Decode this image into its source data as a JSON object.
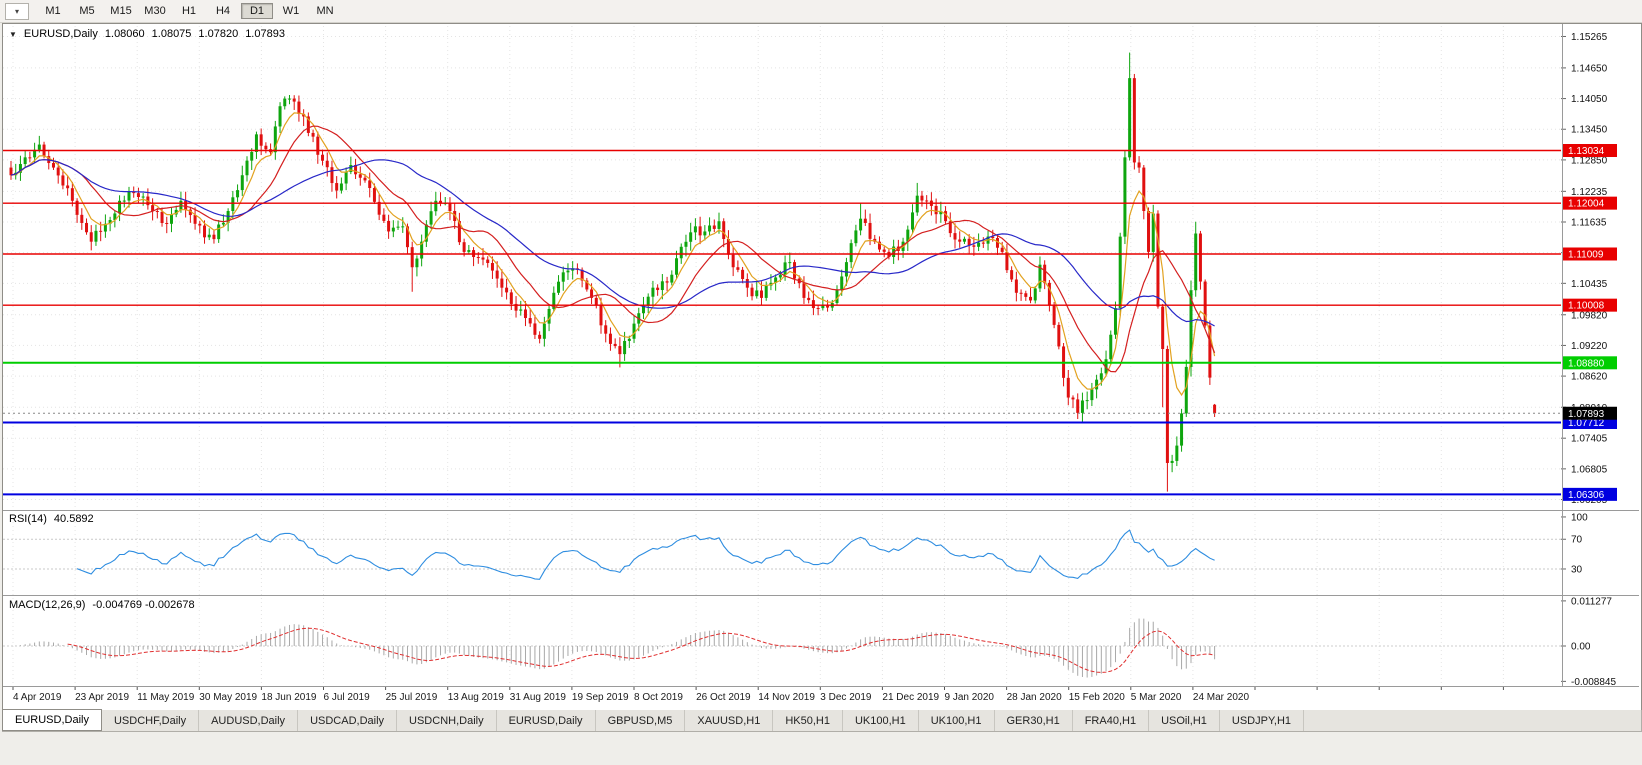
{
  "toolbar": {
    "timeframes": [
      {
        "label": "M1",
        "active": false
      },
      {
        "label": "M5",
        "active": false
      },
      {
        "label": "M15",
        "active": false
      },
      {
        "label": "M30",
        "active": false
      },
      {
        "label": "H1",
        "active": false
      },
      {
        "label": "H4",
        "active": false
      },
      {
        "label": "D1",
        "active": true
      },
      {
        "label": "W1",
        "active": false
      },
      {
        "label": "MN",
        "active": false
      }
    ]
  },
  "chart_header": {
    "expand_icon": "▼",
    "symbol_title": "EURUSD,Daily",
    "ohlc": {
      "open": "1.08060",
      "high": "1.08075",
      "low": "1.07820",
      "close": "1.07893"
    }
  },
  "indicators": {
    "rsi": {
      "label": "RSI(14)",
      "value": "40.5892"
    },
    "macd": {
      "label": "MACD(12,26,9)",
      "values": "-0.004769 -0.002678"
    }
  },
  "chart_data": {
    "type": "candlestick",
    "title": "EURUSD,Daily",
    "bars": 256,
    "y_range": [
      1.06,
      1.1547
    ],
    "y_tick_labels": [
      "1.15265",
      "1.14650",
      "1.14050",
      "1.13450",
      "1.12850",
      "1.12235",
      "1.11635",
      "1.11035",
      "1.10435",
      "1.09820",
      "1.09220",
      "1.08620",
      "1.08010",
      "1.07405",
      "1.06805",
      "1.06205"
    ],
    "x_tick_labels": [
      "4 Apr 2019",
      "23 Apr 2019",
      "11 May 2019",
      "30 May 2019",
      "18 Jun 2019",
      "6 Jul 2019",
      "25 Jul 2019",
      "13 Aug 2019",
      "31 Aug 2019",
      "19 Sep 2019",
      "8 Oct 2019",
      "26 Oct 2019",
      "14 Nov 2019",
      "3 Dec 2019",
      "21 Dec 2019",
      "9 Jan 2020",
      "28 Jan 2020",
      "15 Feb 2020",
      "5 Mar 2020",
      "24 Mar 2020"
    ],
    "colors": {
      "up": "#0ea50e",
      "down": "#e01010",
      "grid": "#e4e4e4",
      "rsi_line": "#2e8de0",
      "macd_hist": "#a8a8a8",
      "macd_signal": "#e03030",
      "current_dash": "#888888"
    },
    "moving_averages": [
      {
        "period": 6,
        "type": "ema",
        "color": "#e2a220"
      },
      {
        "period": 14,
        "type": "sma",
        "color": "#d42020"
      },
      {
        "period": 34,
        "type": "sma",
        "color": "#2828c8"
      }
    ],
    "horizontal_lines": [
      {
        "price": 1.13034,
        "label": "1.13034",
        "color": "#e80000",
        "width": 1.4
      },
      {
        "price": 1.12004,
        "label": "1.12004",
        "color": "#e80000",
        "width": 1.4
      },
      {
        "price": 1.11009,
        "label": "1.11009",
        "color": "#e80000",
        "width": 1.4
      },
      {
        "price": 1.10008,
        "label": "1.10008",
        "color": "#e80000",
        "width": 1.4
      },
      {
        "price": 1.0888,
        "label": "1.08880",
        "color": "#00ce00",
        "width": 2
      },
      {
        "price": 1.07712,
        "label": "1.07712",
        "color": "#0000e0",
        "width": 2
      },
      {
        "price": 1.06306,
        "label": "1.06306",
        "color": "#0000e0",
        "width": 2
      }
    ],
    "current_price": {
      "price": 1.07893,
      "label": "1.07893",
      "color": "#000000"
    },
    "rsi": {
      "period": 14,
      "ticks": [
        "100",
        "70",
        "30"
      ],
      "levels": [
        70,
        30
      ]
    },
    "macd": {
      "fast": 12,
      "slow": 26,
      "signal": 9,
      "ticks": [
        {
          "v": 0.011277,
          "label": "0.011277"
        },
        {
          "v": 0,
          "label": "0.00"
        },
        {
          "v": -0.008845,
          "label": "-0.008845"
        }
      ]
    },
    "anchors": [
      [
        0,
        1.1255
      ],
      [
        3,
        1.129
      ],
      [
        6,
        1.1315
      ],
      [
        9,
        1.127
      ],
      [
        13,
        1.1205
      ],
      [
        17,
        1.1125
      ],
      [
        20,
        1.116
      ],
      [
        23,
        1.1205
      ],
      [
        26,
        1.122
      ],
      [
        30,
        1.1185
      ],
      [
        33,
        1.116
      ],
      [
        36,
        1.1205
      ],
      [
        39,
        1.116
      ],
      [
        43,
        1.113
      ],
      [
        46,
        1.1185
      ],
      [
        49,
        1.1255
      ],
      [
        52,
        1.1335
      ],
      [
        55,
        1.13
      ],
      [
        57,
        1.139
      ],
      [
        59,
        1.1405
      ],
      [
        62,
        1.137
      ],
      [
        65,
        1.1295
      ],
      [
        69,
        1.1225
      ],
      [
        72,
        1.1275
      ],
      [
        76,
        1.123
      ],
      [
        80,
        1.1145
      ],
      [
        83,
        1.1155
      ],
      [
        85,
        1.1075
      ],
      [
        87,
        1.1125
      ],
      [
        90,
        1.1205
      ],
      [
        93,
        1.1185
      ],
      [
        96,
        1.1105
      ],
      [
        100,
        1.109
      ],
      [
        104,
        1.1035
      ],
      [
        107,
        1.099
      ],
      [
        110,
        1.0965
      ],
      [
        112,
        1.0935
      ],
      [
        115,
        1.1025
      ],
      [
        117,
        1.1065
      ],
      [
        120,
        1.107
      ],
      [
        123,
        1.1015
      ],
      [
        126,
        1.0945
      ],
      [
        129,
        1.0905
      ],
      [
        131,
        1.0935
      ],
      [
        133,
        1.0985
      ],
      [
        136,
        1.1035
      ],
      [
        139,
        1.1045
      ],
      [
        142,
        1.1115
      ],
      [
        145,
        1.1155
      ],
      [
        147,
        1.1145
      ],
      [
        150,
        1.1165
      ],
      [
        153,
        1.1075
      ],
      [
        156,
        1.1035
      ],
      [
        159,
        1.1015
      ],
      [
        162,
        1.1055
      ],
      [
        165,
        1.1085
      ],
      [
        168,
        1.1015
      ],
      [
        171,
        1.0995
      ],
      [
        174,
        1.1005
      ],
      [
        177,
        1.1085
      ],
      [
        180,
        1.117
      ],
      [
        183,
        1.1125
      ],
      [
        186,
        1.1095
      ],
      [
        189,
        1.1125
      ],
      [
        192,
        1.1215
      ],
      [
        195,
        1.1195
      ],
      [
        198,
        1.1165
      ],
      [
        201,
        1.1125
      ],
      [
        204,
        1.1115
      ],
      [
        207,
        1.1135
      ],
      [
        210,
        1.1105
      ],
      [
        213,
        1.1025
      ],
      [
        216,
        1.101
      ],
      [
        218,
        1.108
      ],
      [
        220,
        1.1
      ],
      [
        222,
        1.092
      ],
      [
        224,
        1.082
      ],
      [
        226,
        1.079
      ],
      [
        228,
        1.0815
      ],
      [
        230,
        1.0855
      ],
      [
        232,
        1.0895
      ],
      [
        234,
        1.0995
      ],
      [
        236,
        1.129
      ],
      [
        237,
        1.1445
      ],
      [
        238,
        1.128
      ],
      [
        239,
        1.127
      ],
      [
        240,
        1.1185
      ],
      [
        241,
        1.1105
      ],
      [
        242,
        1.118
      ],
      [
        243,
        1.0998
      ],
      [
        244,
        1.0915
      ],
      [
        245,
        1.0692
      ],
      [
        246,
        1.0696
      ],
      [
        247,
        1.0726
      ],
      [
        248,
        1.0789
      ],
      [
        249,
        1.088
      ],
      [
        250,
        1.103
      ],
      [
        251,
        1.1141
      ],
      [
        252,
        1.1047
      ],
      [
        253,
        1.0961
      ],
      [
        254,
        1.0859
      ],
      [
        255,
        1.07893
      ]
    ],
    "wick_overrides": [
      {
        "bar": 6,
        "high": 1.1332
      },
      {
        "bar": 59,
        "high": 1.1412
      },
      {
        "bar": 85,
        "low": 1.1027
      },
      {
        "bar": 112,
        "low": 1.0926
      },
      {
        "bar": 129,
        "low": 1.0879
      },
      {
        "bar": 180,
        "high": 1.12
      },
      {
        "bar": 192,
        "high": 1.124
      },
      {
        "bar": 226,
        "low": 1.0778
      },
      {
        "bar": 237,
        "high": 1.1495
      },
      {
        "bar": 244,
        "low": 1.0801
      },
      {
        "bar": 245,
        "low": 1.0636
      },
      {
        "bar": 251,
        "high": 1.1164
      },
      {
        "bar": 255,
        "open": 1.0806,
        "high": 1.08075,
        "low": 1.0782,
        "close": 1.07893
      }
    ]
  },
  "tabs": [
    {
      "label": "EURUSD,Daily",
      "active": true
    },
    {
      "label": "USDCHF,Daily",
      "active": false
    },
    {
      "label": "AUDUSD,Daily",
      "active": false
    },
    {
      "label": "USDCAD,Daily",
      "active": false
    },
    {
      "label": "USDCNH,Daily",
      "active": false
    },
    {
      "label": "EURUSD,Daily",
      "active": false
    },
    {
      "label": "GBPUSD,M5",
      "active": false
    },
    {
      "label": "XAUUSD,H1",
      "active": false
    },
    {
      "label": "HK50,H1",
      "active": false
    },
    {
      "label": "UK100,H1",
      "active": false
    },
    {
      "label": "UK100,H1",
      "active": false
    },
    {
      "label": "GER30,H1",
      "active": false
    },
    {
      "label": "FRA40,H1",
      "active": false
    },
    {
      "label": "USOil,H1",
      "active": false
    },
    {
      "label": "USDJPY,H1",
      "active": false
    }
  ]
}
